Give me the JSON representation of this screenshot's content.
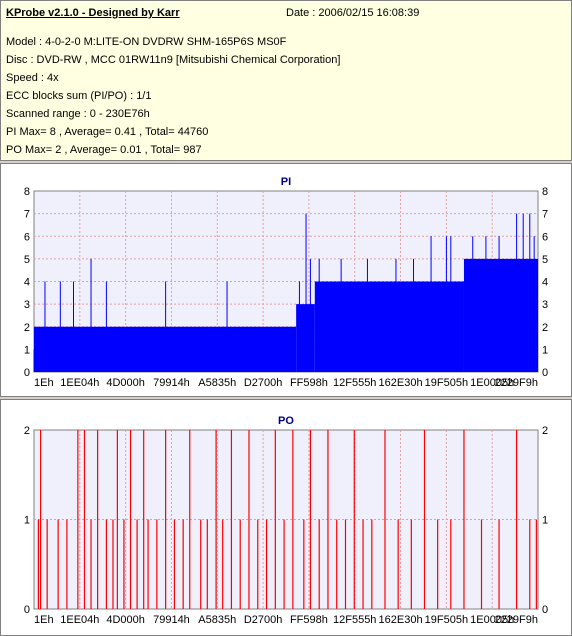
{
  "header": {
    "app_title": "KProbe v2.1.0 - Designed by Karr",
    "date": "Date : 2006/02/15 16:08:39",
    "lines": [
      "Model : 4-0-2-0 M:LITE-ON DVDRW SHM-165P6S MS0F",
      "Disc : DVD-RW , MCC 01RW11n9 [Mitsubishi Chemical Corporation]",
      "Speed : 4x",
      "ECC blocks sum (PI/PO) : 1/1",
      "Scanned range : 0 - 230E76h",
      "PI Max= 8 , Average= 0.41 , Total= 44760",
      "PO Max= 2 , Average= 0.01 , Total= 987"
    ]
  },
  "colors": {
    "plot_bg": "#f0f0fc",
    "grid": "#e0a0a0",
    "pi_series": "#0000ff",
    "po_series": "#ff0000",
    "title": "#000080"
  },
  "chart_data": [
    {
      "type": "bar",
      "title": "PI",
      "x_tick_labels": [
        "1Eh",
        "1EE04h",
        "4D000h",
        "79914h",
        "A5835h",
        "D2700h",
        "FF598h",
        "12F555h",
        "162E30h",
        "19F505h",
        "1E0005h",
        "2229F9h"
      ],
      "xlim": [
        0,
        2297465
      ],
      "ylim": [
        0,
        8
      ],
      "y_ticks": [
        0,
        1,
        2,
        3,
        4,
        5,
        6,
        7,
        8
      ],
      "grid": true,
      "series": [
        {
          "color": "#0000ff",
          "segments": [
            {
              "x_from": 0,
              "x_to": 1195000,
              "base": 2,
              "spikes": [
                [
                  0,
                  1
                ],
                [
                  40000,
                  1
                ],
                [
                  90000,
                  1
                ],
                [
                  330000,
                  4
                ],
                [
                  120000,
                  4
                ],
                [
                  260000,
                  5
                ],
                [
                  50000,
                  4
                ],
                [
                  180000,
                  4
                ],
                [
                  600000,
                  4
                ],
                [
                  880000,
                  4
                ]
              ]
            },
            {
              "x_from": 1195000,
              "x_to": 1280000,
              "base": 3,
              "spikes": [
                [
                  1210000,
                  4
                ],
                [
                  1240000,
                  7
                ],
                [
                  1260000,
                  5
                ]
              ]
            },
            {
              "x_from": 1280000,
              "x_to": 1960000,
              "base": 4,
              "spikes": [
                [
                  1300000,
                  5
                ],
                [
                  1400000,
                  5
                ],
                [
                  1520000,
                  5
                ],
                [
                  1650000,
                  5
                ],
                [
                  1730000,
                  5
                ],
                [
                  1810000,
                  6
                ],
                [
                  1880000,
                  6
                ],
                [
                  1900000,
                  6
                ]
              ]
            },
            {
              "x_from": 1960000,
              "x_to": 2297465,
              "base": 5,
              "spikes": [
                [
                  2000000,
                  6
                ],
                [
                  2060000,
                  6
                ],
                [
                  2120000,
                  6
                ],
                [
                  2200000,
                  7
                ],
                [
                  2230000,
                  7
                ],
                [
                  2260000,
                  7
                ],
                [
                  2280000,
                  6
                ]
              ]
            }
          ]
        }
      ]
    },
    {
      "type": "bar",
      "title": "PO",
      "x_tick_labels": [
        "1Eh",
        "1EE04h",
        "4D000h",
        "79914h",
        "A5835h",
        "D2700h",
        "FF598h",
        "12F555h",
        "162E30h",
        "19F505h",
        "1E0005h",
        "2229F9h"
      ],
      "xlim": [
        0,
        2297465
      ],
      "ylim": [
        0,
        2
      ],
      "y_ticks": [
        0,
        1,
        2
      ],
      "grid": true,
      "series": [
        {
          "color": "#ff0000",
          "events": [
            [
              20000,
              1
            ],
            [
              30000,
              2
            ],
            [
              60000,
              1
            ],
            [
              110000,
              1
            ],
            [
              150000,
              1
            ],
            [
              200000,
              2
            ],
            [
              230000,
              2
            ],
            [
              260000,
              1
            ],
            [
              290000,
              2
            ],
            [
              330000,
              1
            ],
            [
              360000,
              1
            ],
            [
              380000,
              2
            ],
            [
              410000,
              1
            ],
            [
              440000,
              2
            ],
            [
              470000,
              1
            ],
            [
              500000,
              2
            ],
            [
              520000,
              1
            ],
            [
              560000,
              1
            ],
            [
              600000,
              2
            ],
            [
              640000,
              1
            ],
            [
              680000,
              1
            ],
            [
              710000,
              2
            ],
            [
              760000,
              1
            ],
            [
              790000,
              1
            ],
            [
              830000,
              2
            ],
            [
              860000,
              1
            ],
            [
              900000,
              2
            ],
            [
              940000,
              1
            ],
            [
              980000,
              2
            ],
            [
              1020000,
              1
            ],
            [
              1060000,
              1
            ],
            [
              1100000,
              2
            ],
            [
              1140000,
              1
            ],
            [
              1180000,
              2
            ],
            [
              1230000,
              1
            ],
            [
              1260000,
              2
            ],
            [
              1300000,
              1
            ],
            [
              1340000,
              2
            ],
            [
              1380000,
              1
            ],
            [
              1420000,
              1
            ],
            [
              1460000,
              2
            ],
            [
              1500000,
              1
            ],
            [
              1540000,
              1
            ],
            [
              1600000,
              2
            ],
            [
              1660000,
              1
            ],
            [
              1720000,
              1
            ],
            [
              1780000,
              2
            ],
            [
              1840000,
              1
            ],
            [
              1900000,
              1
            ],
            [
              1960000,
              2
            ],
            [
              2040000,
              1
            ],
            [
              2120000,
              1
            ],
            [
              2200000,
              2
            ],
            [
              2260000,
              1
            ],
            [
              2290000,
              1
            ]
          ]
        }
      ]
    }
  ]
}
